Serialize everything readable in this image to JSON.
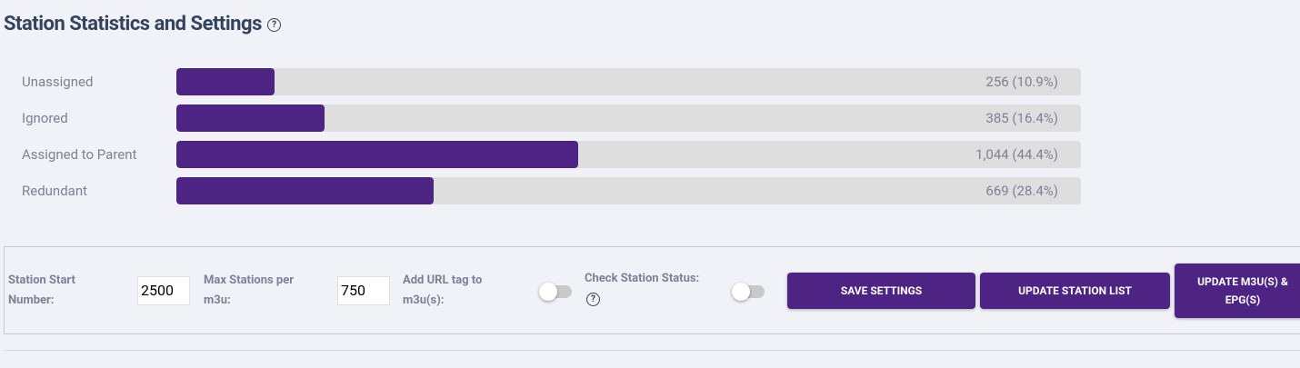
{
  "header": {
    "title": "Station Statistics and Settings"
  },
  "stats": [
    {
      "label": "Unassigned",
      "percent": 10.9,
      "value_label": "256 (10.9%)"
    },
    {
      "label": "Ignored",
      "percent": 16.4,
      "value_label": "385 (16.4%)"
    },
    {
      "label": "Assigned to Parent",
      "percent": 44.4,
      "value_label": "1,044 (44.4%)"
    },
    {
      "label": "Redundant",
      "percent": 28.4,
      "value_label": "669 (28.4%)"
    }
  ],
  "settings": {
    "fields": [
      {
        "label": "Station Start Number:",
        "value": "2500"
      },
      {
        "label": "Max Stations per m3u:",
        "value": "750"
      }
    ],
    "toggles": [
      {
        "label": "Add URL tag to m3u(s):"
      },
      {
        "label": "Check Station Status:"
      }
    ],
    "buttons": [
      "SAVE SETTINGS",
      "UPDATE STATION LIST",
      "UPDATE M3U(S) & EPG(S)"
    ]
  }
}
